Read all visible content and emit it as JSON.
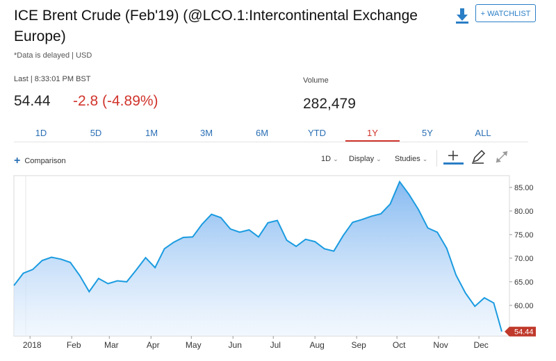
{
  "header": {
    "title": "ICE Brent Crude (Feb'19) (@LCO.1:Intercontinental Exchange Europe)",
    "delayed_note": "*Data is delayed | USD",
    "download_icon": "download-icon",
    "watchlist_label": "+ WATCHLIST"
  },
  "quote": {
    "last_label": "Last | 8:33:01 PM BST",
    "price": "54.44",
    "change": "-2.8 (-4.89%)",
    "volume_label": "Volume",
    "volume": "282,479"
  },
  "colors": {
    "accent": "#2a6fb5",
    "negative": "#d0342c",
    "line": "#1a9be0",
    "fill": "#7fb6f0"
  },
  "tabs": [
    {
      "label": "1D"
    },
    {
      "label": "5D"
    },
    {
      "label": "1M"
    },
    {
      "label": "3M"
    },
    {
      "label": "6M"
    },
    {
      "label": "YTD"
    },
    {
      "label": "1Y",
      "active": true
    },
    {
      "label": "5Y"
    },
    {
      "label": "ALL"
    }
  ],
  "toolbar": {
    "comparison_label": "Comparison",
    "interval_label": "1D",
    "display_label": "Display",
    "studies_label": "Studies",
    "crosshair_icon": "crosshair-icon",
    "draw_icon": "pencil-icon",
    "expand_icon": "expand-icon"
  },
  "chart_data": {
    "type": "area",
    "y_axis": {
      "ticks": [
        "85.00",
        "80.00",
        "75.00",
        "70.00",
        "65.00",
        "60.00"
      ],
      "range": [
        53.5,
        87.5
      ],
      "position": "right"
    },
    "x_axis": {
      "labels": [
        "2018",
        "Feb",
        "Mar",
        "Apr",
        "May",
        "Jun",
        "Jul",
        "Aug",
        "Sep",
        "Oct",
        "Nov",
        "Dec"
      ]
    },
    "last_value_label": "54.44",
    "series": [
      {
        "x": [
          "2017-12-20",
          "2017-12-27",
          "2018-01-03",
          "2018-01-10",
          "2018-01-17",
          "2018-01-24",
          "2018-01-31",
          "2018-02-07",
          "2018-02-14",
          "2018-02-21",
          "2018-02-28",
          "2018-03-07",
          "2018-03-14",
          "2018-03-21",
          "2018-03-28",
          "2018-04-04",
          "2018-04-11",
          "2018-04-18",
          "2018-04-25",
          "2018-05-02",
          "2018-05-09",
          "2018-05-16",
          "2018-05-23",
          "2018-05-30",
          "2018-06-06",
          "2018-06-13",
          "2018-06-20",
          "2018-06-27",
          "2018-07-04",
          "2018-07-11",
          "2018-07-18",
          "2018-07-25",
          "2018-08-01",
          "2018-08-08",
          "2018-08-15",
          "2018-08-22",
          "2018-08-29",
          "2018-09-05",
          "2018-09-12",
          "2018-09-19",
          "2018-09-26",
          "2018-10-03",
          "2018-10-10",
          "2018-10-17",
          "2018-10-24",
          "2018-10-31",
          "2018-11-07",
          "2018-11-14",
          "2018-11-21",
          "2018-11-28",
          "2018-12-05",
          "2018-12-12",
          "2018-12-18"
        ],
        "y": [
          64.2,
          66.8,
          67.6,
          69.5,
          70.2,
          69.8,
          69.1,
          66.3,
          62.9,
          65.7,
          64.6,
          65.2,
          65.0,
          67.5,
          70.1,
          68.0,
          72.0,
          73.4,
          74.4,
          74.5,
          77.2,
          79.3,
          78.6,
          76.2,
          75.5,
          76.0,
          74.5,
          77.5,
          78.0,
          73.8,
          72.5,
          74.0,
          73.5,
          72.0,
          71.5,
          74.8,
          77.6,
          78.2,
          78.9,
          79.4,
          81.5,
          86.2,
          83.5,
          80.3,
          76.4,
          75.5,
          72.1,
          66.4,
          62.6,
          59.8,
          61.6,
          60.5,
          54.44
        ]
      }
    ],
    "grid": false,
    "legend": "none"
  }
}
